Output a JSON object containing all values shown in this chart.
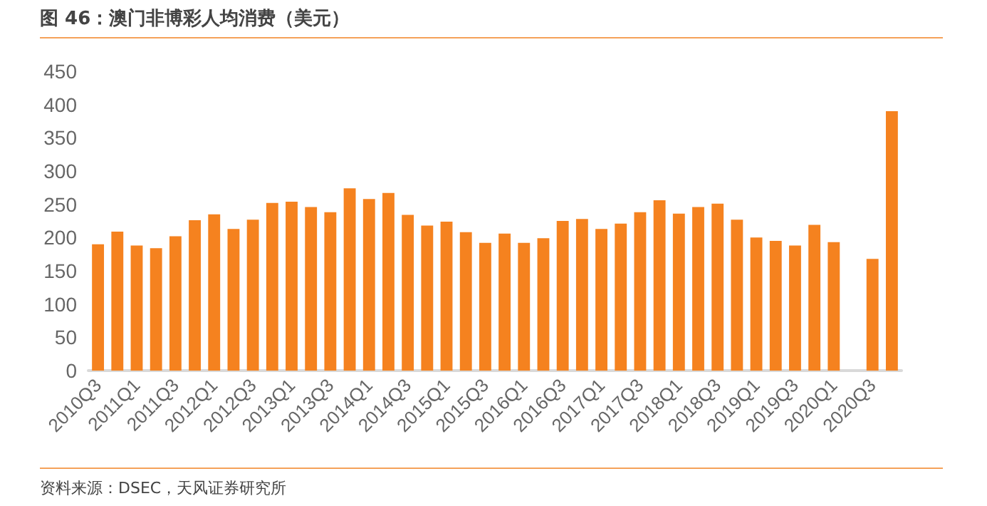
{
  "chart_data": {
    "type": "bar",
    "title": "图 46：澳门非博彩人均消费（美元）",
    "annotations": [
      "资料来源：DSEC，天风证券研究所"
    ],
    "categories": [
      "2010Q3",
      null,
      "2011Q1",
      null,
      "2011Q3",
      null,
      "2012Q1",
      null,
      "2012Q3",
      null,
      "2013Q1",
      null,
      "2013Q3",
      null,
      "2014Q1",
      null,
      "2014Q3",
      null,
      "2015Q1",
      null,
      "2015Q3",
      null,
      "2016Q1",
      null,
      "2016Q3",
      null,
      "2017Q1",
      null,
      "2017Q3",
      null,
      "2018Q1",
      null,
      "2018Q3",
      null,
      "2019Q1",
      null,
      "2019Q3",
      null,
      "2020Q1",
      null,
      "2020Q3",
      null
    ],
    "values": [
      190,
      209,
      188,
      184,
      202,
      226,
      235,
      213,
      227,
      252,
      254,
      246,
      238,
      274,
      258,
      267,
      234,
      218,
      224,
      208,
      192,
      206,
      192,
      199,
      225,
      228,
      213,
      221,
      238,
      256,
      236,
      246,
      251,
      227,
      200,
      195,
      188,
      219,
      193,
      null,
      168,
      390
    ],
    "color": "#f5821f",
    "ylim": [
      0,
      450
    ],
    "yticks": [
      0,
      50,
      100,
      150,
      200,
      250,
      300,
      350,
      400,
      450
    ],
    "grid": false
  }
}
